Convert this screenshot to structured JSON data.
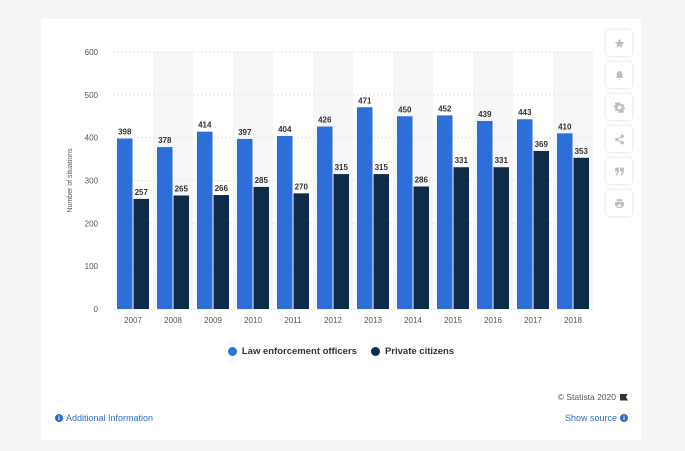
{
  "chart_data": {
    "type": "bar",
    "title": "",
    "xlabel": "",
    "ylabel": "Number of situations",
    "ylim": [
      0,
      600
    ],
    "yticks": [
      0,
      100,
      200,
      300,
      400,
      500,
      600
    ],
    "categories": [
      "2007",
      "2008",
      "2009",
      "2010",
      "2011",
      "2012",
      "2013",
      "2014",
      "2015",
      "2016",
      "2017",
      "2018"
    ],
    "series": [
      {
        "name": "Law enforcement officers",
        "color": "#2d6fd8",
        "values": [
          398,
          378,
          414,
          397,
          404,
          426,
          471,
          450,
          452,
          439,
          443,
          410
        ]
      },
      {
        "name": "Private citizens",
        "color": "#0e2b4a",
        "values": [
          257,
          265,
          266,
          285,
          270,
          315,
          315,
          286,
          331,
          331,
          369,
          353
        ]
      }
    ],
    "legend_position": "bottom-center",
    "grid": true
  },
  "sidebar": {
    "buttons": [
      {
        "name": "favorite",
        "icon": "star-icon"
      },
      {
        "name": "notification",
        "icon": "bell-icon"
      },
      {
        "name": "settings",
        "icon": "gear-icon"
      },
      {
        "name": "share",
        "icon": "share-icon"
      },
      {
        "name": "cite",
        "icon": "quote-icon"
      },
      {
        "name": "print",
        "icon": "print-icon"
      }
    ]
  },
  "footer": {
    "credit": "© Statista 2020",
    "additional_info": "Additional Information",
    "show_source": "Show source"
  },
  "colors": {
    "accent": "#2b6cc4",
    "band": "#f5f6f8"
  }
}
